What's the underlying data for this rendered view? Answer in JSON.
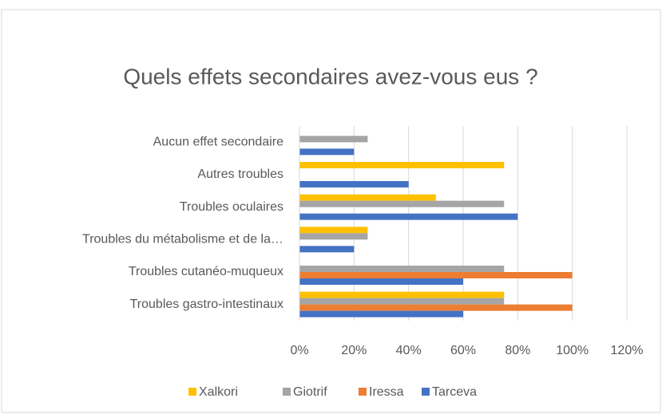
{
  "chart_data": {
    "type": "bar",
    "orientation": "horizontal",
    "title": "Quels effets secondaires avez-vous eus ?",
    "categories": [
      "Aucun effet secondaire",
      "Autres troubles",
      "Troubles oculaires",
      "Troubles du métabolisme et de la…",
      "Troubles cutanéo-muqueux",
      "Troubles gastro-intestinaux"
    ],
    "series": [
      {
        "name": "Xalkori",
        "color": "#FFC000",
        "values": [
          0,
          75,
          50,
          25,
          0,
          75
        ]
      },
      {
        "name": "Giotrif",
        "color": "#A5A5A5",
        "values": [
          25,
          0,
          75,
          25,
          75,
          75
        ]
      },
      {
        "name": "Iressa",
        "color": "#ED7D31",
        "values": [
          0,
          0,
          0,
          0,
          100,
          100
        ]
      },
      {
        "name": "Tarceva",
        "color": "#4472C4",
        "values": [
          20,
          40,
          80,
          20,
          60,
          60
        ]
      }
    ],
    "xlim": [
      0,
      120
    ],
    "xticks": [
      {
        "value": 0,
        "label": "0%"
      },
      {
        "value": 20,
        "label": "20%"
      },
      {
        "value": 40,
        "label": "40%"
      },
      {
        "value": 60,
        "label": "60%"
      },
      {
        "value": 80,
        "label": "80%"
      },
      {
        "value": 100,
        "label": "100%"
      },
      {
        "value": 120,
        "label": "120%"
      }
    ],
    "grid": true,
    "legend": "bottom"
  }
}
